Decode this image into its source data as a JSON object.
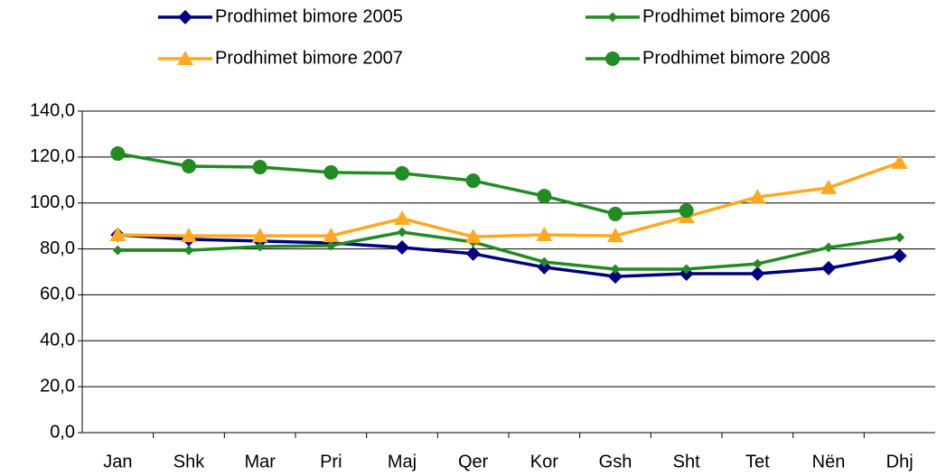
{
  "chart_data": {
    "type": "line",
    "categories": [
      "Jan",
      "Shk",
      "Mar",
      "Pri",
      "Maj",
      "Qer",
      "Kor",
      "Gsh",
      "Sht",
      "Tet",
      "Nën",
      "Dhj"
    ],
    "series": [
      {
        "name": "Prodhimet bimore 2005",
        "color": "#000080",
        "marker": "diamond",
        "values": [
          86.1,
          84.2,
          83.4,
          82.6,
          80.6,
          77.9,
          72.0,
          68.0,
          69.2,
          69.2,
          71.6,
          77.0
        ]
      },
      {
        "name": "Prodhimet bimore 2006",
        "color": "#228b22",
        "marker": "small-diamond",
        "values": [
          79.4,
          79.4,
          81.0,
          81.4,
          87.3,
          83.0,
          74.3,
          71.2,
          71.2,
          73.5,
          80.6,
          85.0
        ]
      },
      {
        "name": "Prodhimet bimore 2007",
        "color": "#ffa920",
        "marker": "triangle",
        "values": [
          86.1,
          85.7,
          85.7,
          85.7,
          93.2,
          85.3,
          86.1,
          85.7,
          94.0,
          102.6,
          106.6,
          117.6
        ]
      },
      {
        "name": "Prodhimet bimore 2008",
        "color": "#228b22",
        "marker": "circle",
        "values": [
          121.5,
          116.0,
          115.6,
          113.3,
          112.9,
          109.7,
          103.0,
          95.2,
          96.7,
          null,
          null,
          null
        ]
      }
    ],
    "ylim": [
      0,
      140
    ],
    "yticks": [
      {
        "value": 0,
        "label": "0,0"
      },
      {
        "value": 20,
        "label": "20,0"
      },
      {
        "value": 40,
        "label": "40,0"
      },
      {
        "value": 60,
        "label": "60,0"
      },
      {
        "value": 80,
        "label": "80,0"
      },
      {
        "value": 100,
        "label": "100,0"
      },
      {
        "value": 120,
        "label": "120,0"
      },
      {
        "value": 140,
        "label": "140,0"
      }
    ],
    "grid": true
  }
}
